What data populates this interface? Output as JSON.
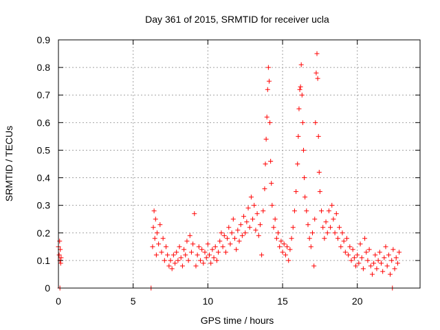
{
  "chart_data": {
    "type": "scatter",
    "title": "Day 361 of 2015, SRMTID for receiver ucla",
    "xlabel": "GPS time / hours",
    "ylabel": "SRMTID / TECUs",
    "xlim": [
      0,
      24.2
    ],
    "ylim": [
      0,
      0.9
    ],
    "xticks": [
      0,
      5,
      10,
      15,
      20
    ],
    "yticks": [
      0,
      0.1,
      0.2,
      0.3,
      0.4,
      0.5,
      0.6,
      0.7,
      0.8,
      0.9
    ],
    "ytick_labels": [
      "0",
      "0.1",
      "0.2",
      "0.3",
      "0.4",
      "0.5",
      "0.6",
      "0.7",
      "0.8",
      "0.9"
    ],
    "grid": true,
    "marker": "+",
    "color": "#ff0000",
    "series": [
      {
        "name": "SRMTID",
        "points": [
          [
            0.0,
            0.15
          ],
          [
            0.05,
            0.12
          ],
          [
            0.08,
            0.17
          ],
          [
            0.1,
            0.1
          ],
          [
            0.12,
            0.14
          ],
          [
            0.15,
            0.09
          ],
          [
            0.18,
            0.11
          ],
          [
            0.1,
            0.0
          ],
          [
            6.2,
            0.0
          ],
          [
            6.3,
            0.15
          ],
          [
            6.35,
            0.22
          ],
          [
            6.4,
            0.28
          ],
          [
            6.45,
            0.18
          ],
          [
            6.5,
            0.25
          ],
          [
            6.55,
            0.12
          ],
          [
            6.6,
            0.2
          ],
          [
            6.7,
            0.16
          ],
          [
            6.8,
            0.23
          ],
          [
            6.9,
            0.13
          ],
          [
            7.0,
            0.18
          ],
          [
            7.1,
            0.1
          ],
          [
            7.2,
            0.15
          ],
          [
            7.3,
            0.12
          ],
          [
            7.4,
            0.08
          ],
          [
            7.5,
            0.1
          ],
          [
            7.6,
            0.07
          ],
          [
            7.7,
            0.12
          ],
          [
            7.8,
            0.09
          ],
          [
            7.9,
            0.13
          ],
          [
            8.0,
            0.1
          ],
          [
            8.1,
            0.15
          ],
          [
            8.2,
            0.11
          ],
          [
            8.3,
            0.08
          ],
          [
            8.4,
            0.14
          ],
          [
            8.5,
            0.12
          ],
          [
            8.6,
            0.17
          ],
          [
            8.7,
            0.1
          ],
          [
            8.8,
            0.19
          ],
          [
            8.9,
            0.13
          ],
          [
            9.0,
            0.16
          ],
          [
            9.1,
            0.27
          ],
          [
            9.2,
            0.08
          ],
          [
            9.3,
            0.12
          ],
          [
            9.4,
            0.15
          ],
          [
            9.5,
            0.1
          ],
          [
            9.6,
            0.14
          ],
          [
            9.7,
            0.09
          ],
          [
            9.8,
            0.13
          ],
          [
            9.9,
            0.11
          ],
          [
            10.0,
            0.16
          ],
          [
            10.1,
            0.12
          ],
          [
            10.2,
            0.09
          ],
          [
            10.3,
            0.14
          ],
          [
            10.4,
            0.11
          ],
          [
            10.5,
            0.15
          ],
          [
            10.6,
            0.1
          ],
          [
            10.7,
            0.13
          ],
          [
            10.8,
            0.17
          ],
          [
            10.9,
            0.2
          ],
          [
            11.0,
            0.15
          ],
          [
            11.1,
            0.19
          ],
          [
            11.2,
            0.13
          ],
          [
            11.3,
            0.18
          ],
          [
            11.4,
            0.22
          ],
          [
            11.5,
            0.16
          ],
          [
            11.6,
            0.2
          ],
          [
            11.7,
            0.25
          ],
          [
            11.8,
            0.18
          ],
          [
            11.9,
            0.14
          ],
          [
            12.0,
            0.21
          ],
          [
            12.1,
            0.17
          ],
          [
            12.2,
            0.23
          ],
          [
            12.3,
            0.19
          ],
          [
            12.4,
            0.26
          ],
          [
            12.5,
            0.2
          ],
          [
            12.6,
            0.24
          ],
          [
            12.7,
            0.29
          ],
          [
            12.8,
            0.22
          ],
          [
            12.9,
            0.33
          ],
          [
            13.0,
            0.25
          ],
          [
            13.1,
            0.3
          ],
          [
            13.2,
            0.21
          ],
          [
            13.3,
            0.27
          ],
          [
            13.4,
            0.19
          ],
          [
            13.5,
            0.23
          ],
          [
            13.6,
            0.12
          ],
          [
            13.7,
            0.28
          ],
          [
            13.8,
            0.36
          ],
          [
            13.85,
            0.45
          ],
          [
            13.9,
            0.54
          ],
          [
            13.95,
            0.62
          ],
          [
            14.0,
            0.72
          ],
          [
            14.05,
            0.8
          ],
          [
            14.1,
            0.75
          ],
          [
            14.15,
            0.6
          ],
          [
            14.2,
            0.46
          ],
          [
            14.25,
            0.38
          ],
          [
            14.3,
            0.3
          ],
          [
            14.4,
            0.22
          ],
          [
            14.5,
            0.25
          ],
          [
            14.6,
            0.18
          ],
          [
            14.7,
            0.2
          ],
          [
            14.8,
            0.15
          ],
          [
            14.9,
            0.17
          ],
          [
            15.0,
            0.13
          ],
          [
            15.1,
            0.16
          ],
          [
            15.2,
            0.12
          ],
          [
            15.3,
            0.15
          ],
          [
            15.4,
            0.1
          ],
          [
            15.5,
            0.14
          ],
          [
            15.6,
            0.18
          ],
          [
            15.7,
            0.22
          ],
          [
            15.8,
            0.28
          ],
          [
            15.9,
            0.35
          ],
          [
            16.0,
            0.45
          ],
          [
            16.05,
            0.55
          ],
          [
            16.1,
            0.65
          ],
          [
            16.15,
            0.72
          ],
          [
            16.2,
            0.73
          ],
          [
            16.25,
            0.81
          ],
          [
            16.3,
            0.7
          ],
          [
            16.35,
            0.6
          ],
          [
            16.4,
            0.5
          ],
          [
            16.45,
            0.4
          ],
          [
            16.5,
            0.33
          ],
          [
            16.6,
            0.28
          ],
          [
            16.7,
            0.23
          ],
          [
            16.8,
            0.18
          ],
          [
            16.9,
            0.15
          ],
          [
            17.0,
            0.2
          ],
          [
            17.1,
            0.08
          ],
          [
            17.15,
            0.25
          ],
          [
            17.2,
            0.6
          ],
          [
            17.25,
            0.78
          ],
          [
            17.3,
            0.85
          ],
          [
            17.35,
            0.76
          ],
          [
            17.4,
            0.55
          ],
          [
            17.45,
            0.42
          ],
          [
            17.5,
            0.35
          ],
          [
            17.6,
            0.28
          ],
          [
            17.7,
            0.22
          ],
          [
            17.8,
            0.18
          ],
          [
            17.9,
            0.24
          ],
          [
            18.0,
            0.2
          ],
          [
            18.1,
            0.28
          ],
          [
            18.2,
            0.22
          ],
          [
            18.3,
            0.3
          ],
          [
            18.4,
            0.25
          ],
          [
            18.5,
            0.2
          ],
          [
            18.6,
            0.27
          ],
          [
            18.7,
            0.18
          ],
          [
            18.8,
            0.22
          ],
          [
            18.9,
            0.15
          ],
          [
            19.0,
            0.2
          ],
          [
            19.1,
            0.17
          ],
          [
            19.2,
            0.13
          ],
          [
            19.3,
            0.18
          ],
          [
            19.4,
            0.12
          ],
          [
            19.5,
            0.15
          ],
          [
            19.6,
            0.1
          ],
          [
            19.7,
            0.14
          ],
          [
            19.8,
            0.11
          ],
          [
            19.9,
            0.08
          ],
          [
            20.0,
            0.12
          ],
          [
            20.1,
            0.09
          ],
          [
            20.2,
            0.16
          ],
          [
            20.3,
            0.11
          ],
          [
            20.4,
            0.07
          ],
          [
            20.5,
            0.18
          ],
          [
            20.6,
            0.13
          ],
          [
            20.7,
            0.1
          ],
          [
            20.8,
            0.14
          ],
          [
            20.9,
            0.08
          ],
          [
            21.0,
            0.05
          ],
          [
            21.1,
            0.09
          ],
          [
            21.2,
            0.12
          ],
          [
            21.3,
            0.07
          ],
          [
            21.4,
            0.1
          ],
          [
            21.5,
            0.13
          ],
          [
            21.6,
            0.09
          ],
          [
            21.7,
            0.06
          ],
          [
            21.8,
            0.11
          ],
          [
            21.9,
            0.15
          ],
          [
            22.0,
            0.08
          ],
          [
            22.1,
            0.12
          ],
          [
            22.2,
            0.05
          ],
          [
            22.3,
            0.1
          ],
          [
            22.4,
            0.14
          ],
          [
            22.5,
            0.07
          ],
          [
            22.6,
            0.11
          ],
          [
            22.7,
            0.09
          ],
          [
            22.8,
            0.13
          ],
          [
            22.35,
            0.0
          ]
        ]
      }
    ]
  }
}
